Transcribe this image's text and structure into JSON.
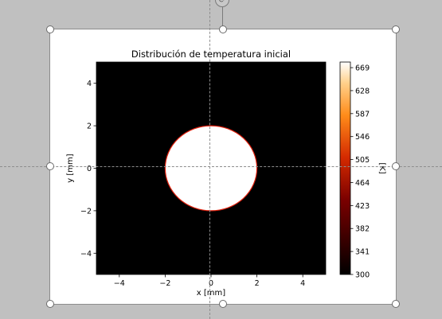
{
  "colors": {
    "workspace": "#c0c0c0",
    "frame": "#ffffff",
    "hot": "#ffffff",
    "cold": "#000000",
    "edge": "#e0200c"
  },
  "chart_data": {
    "type": "heatmap",
    "title": "Distribución de temperatura inicial",
    "xlabel": "x [mm]",
    "ylabel": "y [mm]",
    "xlim": [
      -5,
      5
    ],
    "ylim": [
      -5,
      5
    ],
    "xticks": [
      -4,
      -2,
      0,
      2,
      4
    ],
    "xtick_labels": [
      "−4",
      "−2",
      "0",
      "2",
      "4"
    ],
    "yticks": [
      4,
      2,
      0,
      -2,
      -4
    ],
    "ytick_labels": [
      "4",
      "2",
      "0",
      "−2",
      "−4"
    ],
    "hot_region": {
      "shape": "disk",
      "center": [
        0,
        0
      ],
      "radius": 2
    },
    "field_values": {
      "inside": 669,
      "outside": 300
    },
    "colorbar": {
      "label": "[K]",
      "colormap": "gist_heat",
      "min": 300,
      "max": 679,
      "ticks": [
        669,
        628,
        587,
        546,
        505,
        464,
        423,
        382,
        341,
        300
      ]
    },
    "grid": false
  },
  "icons": {
    "rotate": "rotate-icon",
    "handle": "resize-handle"
  }
}
